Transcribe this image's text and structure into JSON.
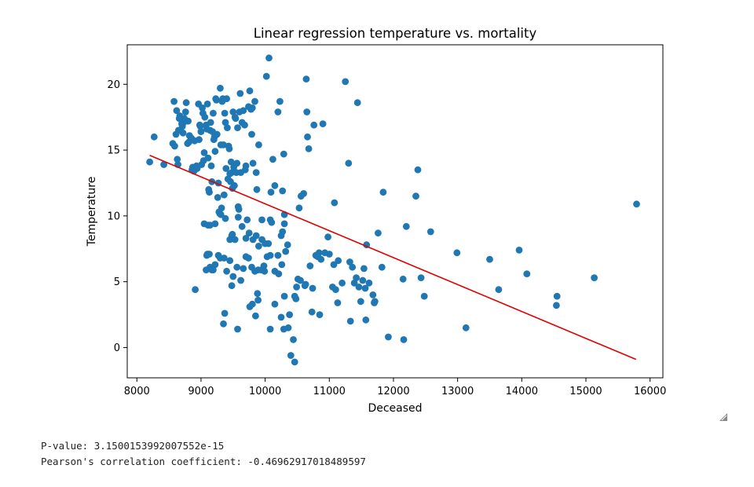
{
  "chart_data": {
    "type": "scatter",
    "title": "Linear regression temperature vs. mortality",
    "xlabel": "Deceased",
    "ylabel": "Temperature",
    "xlim": [
      7850,
      16200
    ],
    "ylim": [
      -2.3,
      23.0
    ],
    "xticks": [
      8000,
      9000,
      10000,
      11000,
      12000,
      13000,
      14000,
      15000,
      16000
    ],
    "yticks": [
      0,
      5,
      10,
      15,
      20
    ],
    "grid": false,
    "point_color": "#1f77b4",
    "line_color": "#e00000",
    "regression_line": {
      "x": [
        8200,
        15780
      ],
      "y": [
        14.6,
        -0.9
      ]
    },
    "points": [
      [
        8200,
        14.1
      ],
      [
        8270,
        16
      ],
      [
        8420,
        13.9
      ],
      [
        8560,
        15.5
      ],
      [
        8580,
        18.7
      ],
      [
        8590,
        15.3
      ],
      [
        8610,
        16.2
      ],
      [
        8620,
        18
      ],
      [
        8630,
        14.3
      ],
      [
        8640,
        13.9
      ],
      [
        8650,
        16.5
      ],
      [
        8660,
        17.4
      ],
      [
        8670,
        17.6
      ],
      [
        8700,
        17
      ],
      [
        8710,
        16.8
      ],
      [
        8720,
        16.3
      ],
      [
        8730,
        17.1
      ],
      [
        8740,
        17.4
      ],
      [
        8760,
        17.9
      ],
      [
        8770,
        18.6
      ],
      [
        8790,
        15.5
      ],
      [
        8800,
        17.2
      ],
      [
        8810,
        15.6
      ],
      [
        8820,
        16.1
      ],
      [
        8840,
        15.8
      ],
      [
        8850,
        15.9
      ],
      [
        8860,
        13.5
      ],
      [
        8870,
        13.7
      ],
      [
        8880,
        13.6
      ],
      [
        8890,
        13.4
      ],
      [
        8900,
        15.7
      ],
      [
        8910,
        4.4
      ],
      [
        8930,
        13.8
      ],
      [
        8940,
        13.6
      ],
      [
        8960,
        18.5
      ],
      [
        8970,
        15.8
      ],
      [
        8980,
        16.9
      ],
      [
        8990,
        16.8
      ],
      [
        9000,
        16.4
      ],
      [
        9010,
        13.9
      ],
      [
        9020,
        18.2
      ],
      [
        9030,
        17.8
      ],
      [
        9040,
        14.2
      ],
      [
        9050,
        14.8
      ],
      [
        9060,
        17.5
      ],
      [
        9080,
        16.9
      ],
      [
        9090,
        16.6
      ],
      [
        9100,
        18.5
      ],
      [
        9110,
        14.4
      ],
      [
        9120,
        12
      ],
      [
        9130,
        11.8
      ],
      [
        9140,
        16.5
      ],
      [
        9150,
        17.1
      ],
      [
        9160,
        13.8
      ],
      [
        9170,
        12.6
      ],
      [
        9180,
        16.4
      ],
      [
        9190,
        17.8
      ],
      [
        9200,
        15.8
      ],
      [
        9210,
        16
      ],
      [
        9220,
        14.9
      ],
      [
        9230,
        18.9
      ],
      [
        9240,
        18.8
      ],
      [
        9250,
        16.2
      ],
      [
        9260,
        11.4
      ],
      [
        9270,
        12.5
      ],
      [
        9280,
        10.3
      ],
      [
        9290,
        10.2
      ],
      [
        9300,
        19.7
      ],
      [
        9310,
        15.4
      ],
      [
        9320,
        10.6
      ],
      [
        9330,
        18.7
      ],
      [
        9340,
        18.9
      ],
      [
        9350,
        15.4
      ],
      [
        9360,
        11.6
      ],
      [
        9370,
        17.8
      ],
      [
        9380,
        17.1
      ],
      [
        9390,
        13.6
      ],
      [
        9400,
        18.9
      ],
      [
        9410,
        16.7
      ],
      [
        9420,
        12.8
      ],
      [
        9430,
        15.3
      ],
      [
        9440,
        15.1
      ],
      [
        9450,
        13.2
      ],
      [
        9460,
        12.6
      ],
      [
        9470,
        14.1
      ],
      [
        9480,
        13.3
      ],
      [
        9490,
        12.1
      ],
      [
        9500,
        17.9
      ],
      [
        9510,
        13.7
      ],
      [
        9520,
        12.3
      ],
      [
        9530,
        17.5
      ],
      [
        9540,
        17.4
      ],
      [
        9550,
        13.3
      ],
      [
        9560,
        14
      ],
      [
        9570,
        16.7
      ],
      [
        9580,
        10.7
      ],
      [
        9590,
        10.5
      ],
      [
        9600,
        17.9
      ],
      [
        9610,
        19.3
      ],
      [
        9620,
        13.3
      ],
      [
        9640,
        17.1
      ],
      [
        9660,
        18
      ],
      [
        9680,
        16.9
      ],
      [
        9690,
        13.5
      ],
      [
        9700,
        13.8
      ],
      [
        9720,
        9.7
      ],
      [
        9740,
        18.3
      ],
      [
        9760,
        19.5
      ],
      [
        9780,
        18.1
      ],
      [
        9790,
        16.2
      ],
      [
        9800,
        18.2
      ],
      [
        9810,
        14
      ],
      [
        9840,
        18.7
      ],
      [
        9860,
        13.3
      ],
      [
        9870,
        12
      ],
      [
        9900,
        15.4
      ],
      [
        9950,
        9.7
      ],
      [
        9980,
        6.2
      ],
      [
        10020,
        20.6
      ],
      [
        10060,
        22
      ],
      [
        10090,
        11.8
      ],
      [
        10120,
        14.3
      ],
      [
        10150,
        12.3
      ],
      [
        10200,
        17.9
      ],
      [
        10230,
        18.7
      ],
      [
        10270,
        11.9
      ],
      [
        10290,
        14.7
      ],
      [
        10300,
        10.1
      ],
      [
        9050,
        9.4
      ],
      [
        9110,
        9.3
      ],
      [
        9140,
        9.3
      ],
      [
        9220,
        9.4
      ],
      [
        9310,
        10.1
      ],
      [
        9380,
        9.8
      ],
      [
        9450,
        8.2
      ],
      [
        9480,
        8.5
      ],
      [
        9490,
        8.6
      ],
      [
        9530,
        8.2
      ],
      [
        9580,
        9.9
      ],
      [
        9640,
        9.2
      ],
      [
        9700,
        8.3
      ],
      [
        9750,
        8.7
      ],
      [
        9810,
        8.2
      ],
      [
        9860,
        8.5
      ],
      [
        9900,
        7.7
      ],
      [
        9950,
        8.2
      ],
      [
        10000,
        7.9
      ],
      [
        10050,
        7.9
      ],
      [
        10200,
        7
      ],
      [
        10250,
        8.5
      ],
      [
        10270,
        8.8
      ],
      [
        10300,
        9.4
      ],
      [
        10320,
        7.3
      ],
      [
        10350,
        7.8
      ],
      [
        10080,
        9.7
      ],
      [
        9220,
        6.3
      ],
      [
        9270,
        7
      ],
      [
        9300,
        6.8
      ],
      [
        9360,
        6.8
      ],
      [
        9400,
        5.8
      ],
      [
        9450,
        6.6
      ],
      [
        9500,
        5.4
      ],
      [
        9560,
        6.1
      ],
      [
        9620,
        5.1
      ],
      [
        9660,
        6
      ],
      [
        9700,
        6.9
      ],
      [
        9740,
        6.8
      ],
      [
        9790,
        6.1
      ],
      [
        9840,
        5.8
      ],
      [
        9890,
        5.9
      ],
      [
        9940,
        5.9
      ],
      [
        9990,
        5.8
      ],
      [
        10030,
        6.9
      ],
      [
        10080,
        7
      ],
      [
        10150,
        5.8
      ],
      [
        10210,
        5.6
      ],
      [
        10260,
        6.3
      ],
      [
        9100,
        7.1
      ],
      [
        9140,
        6.1
      ],
      [
        9170,
        5.9
      ],
      [
        9190,
        5.9
      ],
      [
        9080,
        5.9
      ],
      [
        9090,
        7
      ],
      [
        9130,
        7.1
      ],
      [
        9480,
        4.7
      ],
      [
        9570,
        1.4
      ],
      [
        9760,
        3.1
      ],
      [
        9800,
        3.3
      ],
      [
        9850,
        2.4
      ],
      [
        9880,
        4.1
      ],
      [
        9890,
        3.6
      ],
      [
        10080,
        1.4
      ],
      [
        10150,
        3.3
      ],
      [
        10250,
        2.3
      ],
      [
        10300,
        3.9
      ],
      [
        10360,
        1.5
      ],
      [
        10380,
        2.5
      ],
      [
        10400,
        -0.6
      ],
      [
        10440,
        0.6
      ],
      [
        10460,
        -1.1
      ],
      [
        10480,
        3.7
      ],
      [
        10490,
        4.6
      ],
      [
        10510,
        5.2
      ],
      [
        10550,
        5.1
      ],
      [
        10600,
        11.7
      ],
      [
        10620,
        4.7
      ],
      [
        10640,
        20.4
      ],
      [
        10650,
        17.9
      ],
      [
        10660,
        16
      ],
      [
        10680,
        15.1
      ],
      [
        10700,
        6.2
      ],
      [
        10740,
        4.5
      ],
      [
        10760,
        16.9
      ],
      [
        10790,
        7
      ],
      [
        10820,
        6.9
      ],
      [
        10840,
        7.2
      ],
      [
        10870,
        6.7
      ],
      [
        10900,
        17
      ],
      [
        10930,
        7.2
      ],
      [
        11000,
        7.1
      ],
      [
        11050,
        4.6
      ],
      [
        11070,
        6.3
      ],
      [
        11080,
        11
      ],
      [
        11100,
        4.4
      ],
      [
        11140,
        6.6
      ],
      [
        11200,
        4.9
      ],
      [
        11250,
        20.2
      ],
      [
        11300,
        14
      ],
      [
        11320,
        6.5
      ],
      [
        11360,
        6.1
      ],
      [
        11390,
        4.9
      ],
      [
        11420,
        5.3
      ],
      [
        11440,
        18.6
      ],
      [
        11460,
        4.6
      ],
      [
        11490,
        3.5
      ],
      [
        11520,
        5.1
      ],
      [
        11540,
        6
      ],
      [
        11560,
        4.5
      ],
      [
        11580,
        7.8
      ],
      [
        11620,
        4.9
      ],
      [
        11680,
        4
      ],
      [
        11700,
        3.4
      ],
      [
        11760,
        8.7
      ],
      [
        11820,
        6.1
      ],
      [
        11840,
        11.8
      ],
      [
        11920,
        0.8
      ],
      [
        12150,
        5.2
      ],
      [
        12160,
        0.6
      ],
      [
        12200,
        9.2
      ],
      [
        12350,
        11.5
      ],
      [
        12380,
        13.5
      ],
      [
        12430,
        5.3
      ],
      [
        12480,
        3.9
      ],
      [
        12580,
        8.8
      ],
      [
        12990,
        7.2
      ],
      [
        13130,
        1.5
      ],
      [
        13500,
        6.7
      ],
      [
        13640,
        4.4
      ],
      [
        13960,
        7.4
      ],
      [
        14080,
        5.6
      ],
      [
        14540,
        3.2
      ],
      [
        14550,
        3.9
      ],
      [
        15130,
        5.3
      ],
      [
        15790,
        10.9
      ],
      [
        10530,
        10.6
      ],
      [
        10560,
        11.5
      ],
      [
        10100,
        9.5
      ],
      [
        10730,
        2.7
      ],
      [
        10850,
        2.5
      ],
      [
        10980,
        8.4
      ],
      [
        11130,
        3.4
      ],
      [
        11330,
        2
      ],
      [
        11570,
        2.1
      ],
      [
        11710,
        3.5
      ],
      [
        10460,
        3.9
      ],
      [
        10290,
        1.4
      ],
      [
        9350,
        1.8
      ],
      [
        9370,
        2.6
      ],
      [
        10630,
        4.8
      ]
    ]
  },
  "stats": {
    "p_value_line": "P-value: 3.1500153992007552e-15",
    "pearson_line": "Pearson's correlation coefficient: -0.46962917018489597"
  }
}
